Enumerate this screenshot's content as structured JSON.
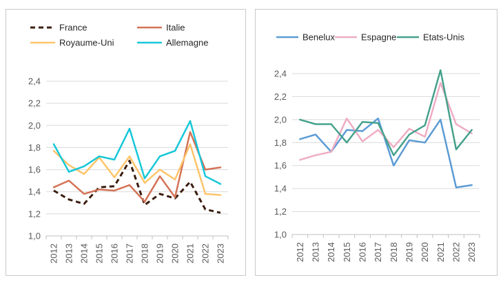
{
  "chart_data": [
    {
      "type": "line",
      "x": [
        2012,
        2013,
        2014,
        2015,
        2016,
        2017,
        2018,
        2019,
        2020,
        2021,
        2022,
        2023
      ],
      "ylim": [
        1.0,
        2.4
      ],
      "yticks": [
        "1,0",
        "1,2",
        "1,4",
        "1,6",
        "1,8",
        "2,0",
        "2,2",
        "2,4"
      ],
      "ytick_values": [
        1.0,
        1.2,
        1.4,
        1.6,
        1.8,
        2.0,
        2.2,
        2.4
      ],
      "grid": true,
      "legend_position": "top",
      "series": [
        {
          "name": "France",
          "color": "#3a1d0f",
          "dash": true,
          "values": [
            1.41,
            1.33,
            1.29,
            1.44,
            1.45,
            1.68,
            1.28,
            1.38,
            1.34,
            1.49,
            1.24,
            1.21
          ]
        },
        {
          "name": "Italie",
          "color": "#d47256",
          "dash": false,
          "values": [
            1.44,
            1.5,
            1.38,
            1.42,
            1.41,
            1.46,
            1.31,
            1.54,
            1.35,
            1.94,
            1.6,
            1.62
          ]
        },
        {
          "name": "Royaume-Uni",
          "color": "#ffc46a",
          "dash": false,
          "values": [
            1.77,
            1.64,
            1.56,
            1.71,
            1.53,
            1.72,
            1.48,
            1.6,
            1.51,
            1.83,
            1.38,
            1.37
          ]
        },
        {
          "name": "Allemagne",
          "color": "#16c7d8",
          "dash": false,
          "values": [
            1.83,
            1.58,
            1.63,
            1.72,
            1.69,
            1.97,
            1.52,
            1.72,
            1.77,
            2.04,
            1.54,
            1.47
          ]
        }
      ]
    },
    {
      "type": "line",
      "x": [
        2012,
        2013,
        2014,
        2015,
        2016,
        2017,
        2018,
        2019,
        2020,
        2021,
        2022,
        2023
      ],
      "ylim": [
        1.0,
        2.4
      ],
      "yticks": [
        "1,0",
        "1,2",
        "1,4",
        "1,6",
        "1,8",
        "2,0",
        "2,2",
        "2,4"
      ],
      "ytick_values": [
        1.0,
        1.2,
        1.4,
        1.6,
        1.8,
        2.0,
        2.2,
        2.4
      ],
      "grid": true,
      "legend_position": "top",
      "series": [
        {
          "name": "Benelux",
          "color": "#5b9bd5",
          "dash": false,
          "values": [
            1.83,
            1.87,
            1.72,
            1.91,
            1.9,
            2.01,
            1.6,
            1.82,
            1.8,
            2.0,
            1.41,
            1.43
          ]
        },
        {
          "name": "Espagne",
          "color": "#eeadc4",
          "dash": false,
          "values": [
            1.65,
            1.69,
            1.72,
            2.01,
            1.81,
            1.91,
            1.76,
            1.92,
            1.85,
            2.32,
            1.96,
            1.88
          ]
        },
        {
          "name": "Etats-Unis",
          "color": "#45a18c",
          "dash": false,
          "values": [
            2.0,
            1.96,
            1.96,
            1.8,
            1.98,
            1.97,
            1.69,
            1.87,
            1.95,
            2.43,
            1.74,
            1.91
          ]
        }
      ]
    }
  ]
}
